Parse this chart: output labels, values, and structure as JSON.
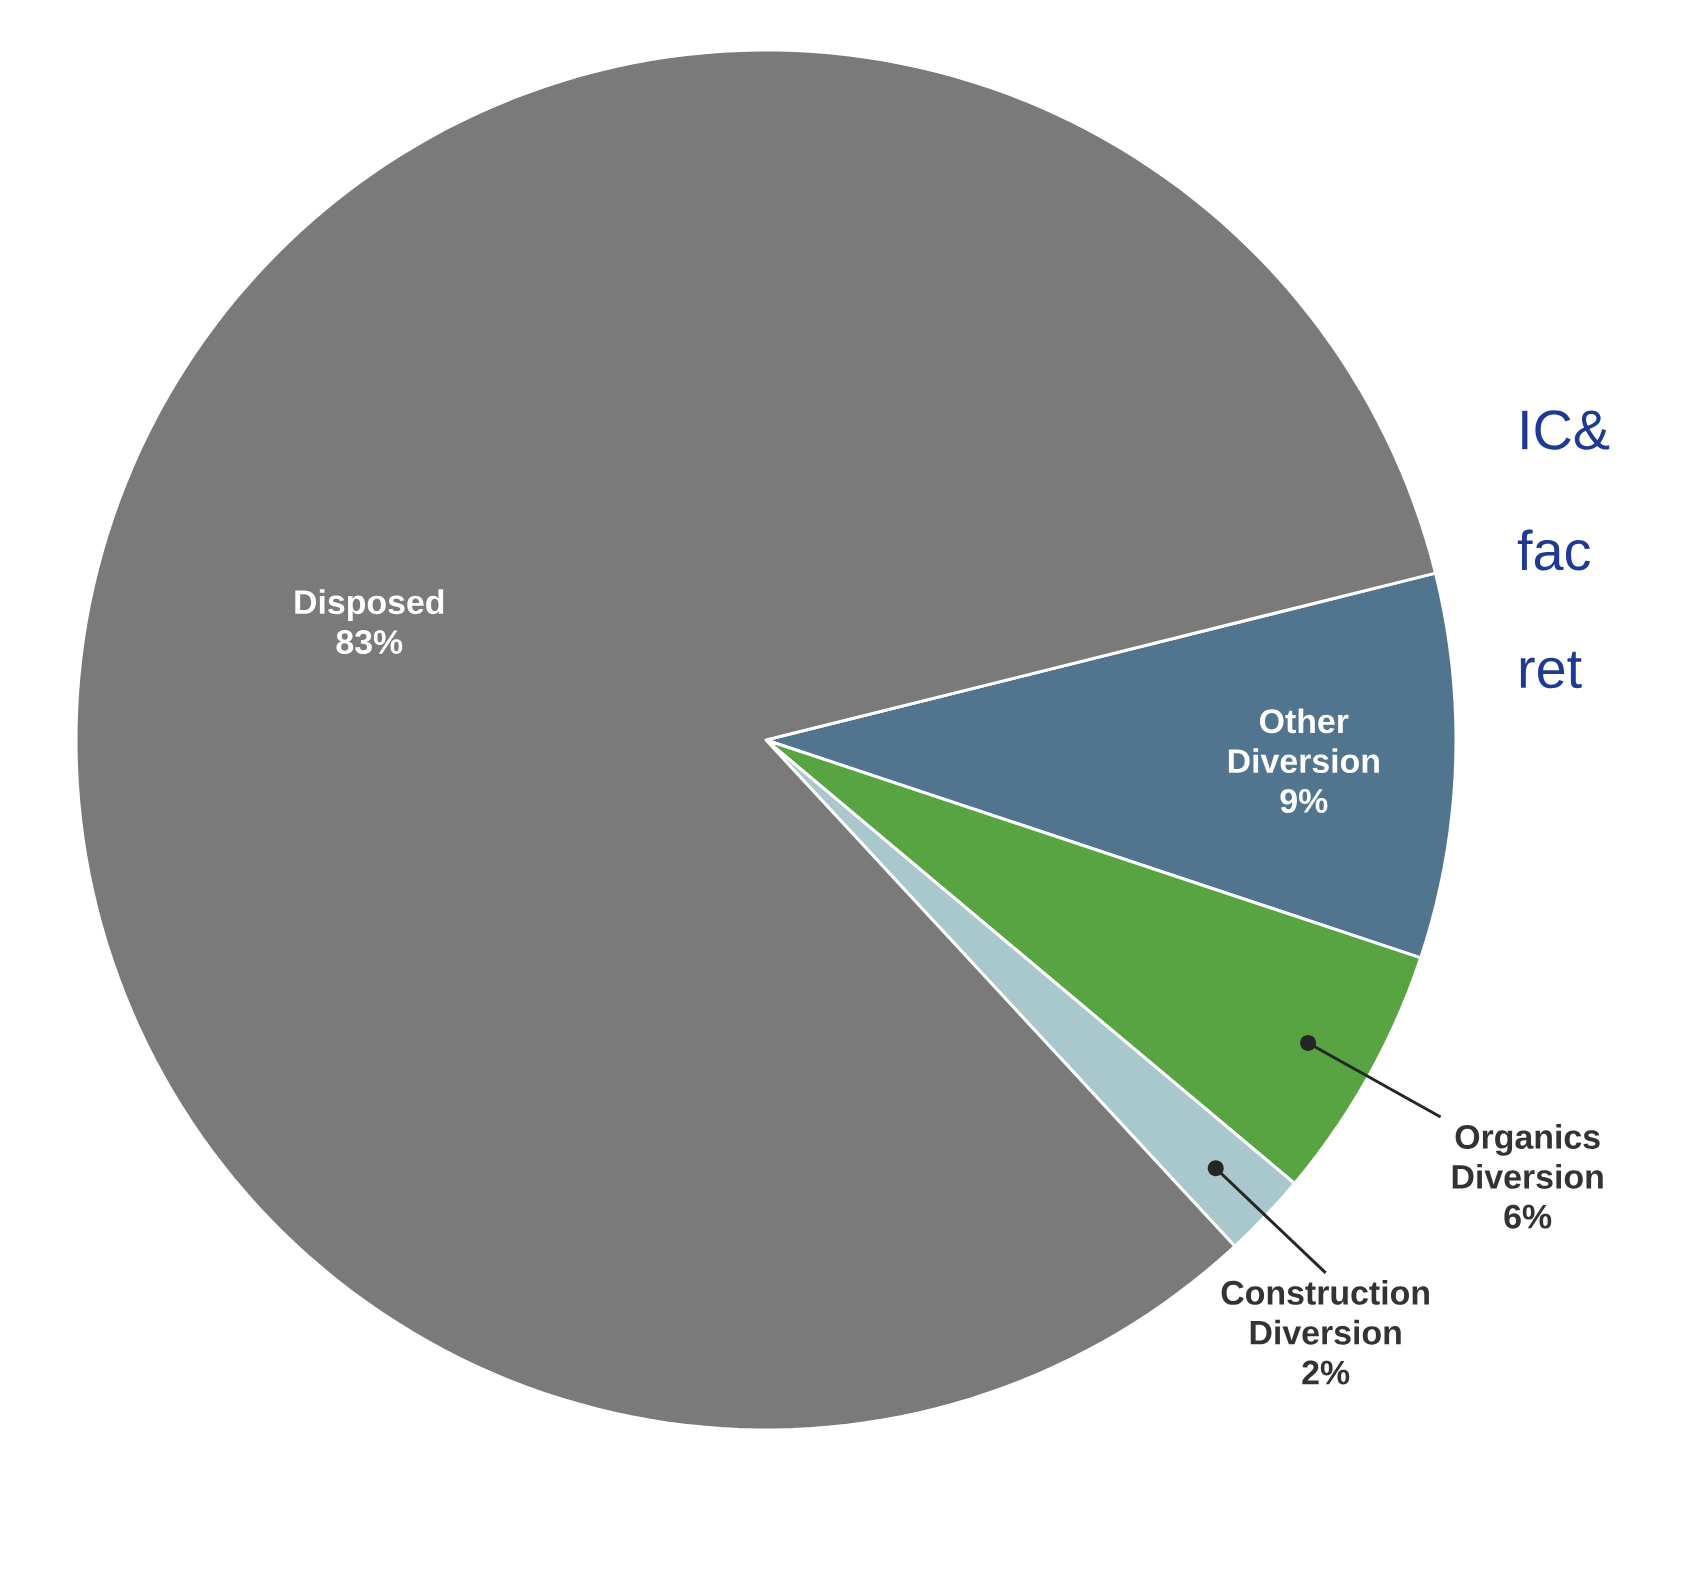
{
  "chart_data": {
    "type": "pie",
    "categories": [
      "Other Diversion",
      "Organics Diversion",
      "Construction Diversion",
      "Disposed"
    ],
    "values": [
      9,
      6,
      2,
      83
    ],
    "colors": [
      "#52758f",
      "#58a443",
      "#a9c8cc",
      "#7a7a7a"
    ],
    "value_labels": [
      "9%",
      "6%",
      "2%",
      "83%"
    ],
    "annotations": [
      "IC&",
      "fac",
      "ret"
    ]
  }
}
